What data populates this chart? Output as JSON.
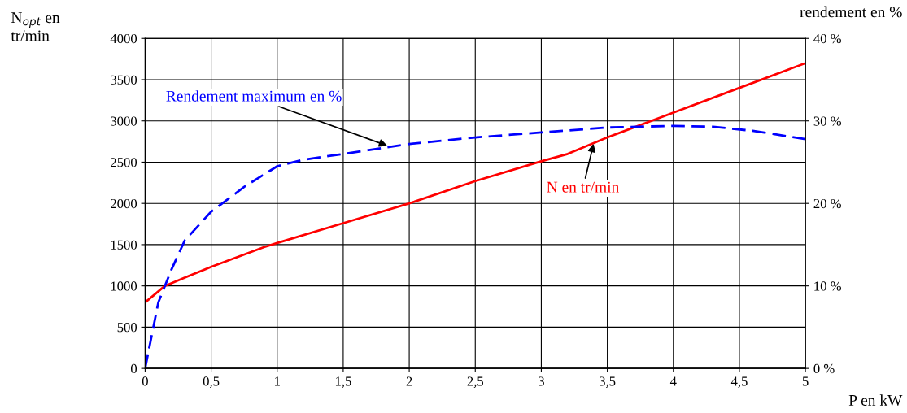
{
  "chart_data": {
    "type": "line",
    "xlabel": "P en kW",
    "ylabel": "N$_{opt}$ en\ntr/min",
    "y2label": "rendement en %",
    "xlim": [
      0,
      5
    ],
    "xticks": [
      0,
      {
        "value": 0.5,
        "label": "0,5"
      },
      1,
      {
        "value": 1.5,
        "label": "1,5"
      },
      2,
      {
        "value": 2.5,
        "label": "2,5"
      },
      3,
      {
        "value": 3.5,
        "label": "3,5"
      },
      4,
      {
        "value": 4.5,
        "label": "4,5"
      },
      5
    ],
    "ylim": [
      0,
      4000
    ],
    "yticks": [
      0,
      500,
      1000,
      1500,
      2000,
      2500,
      3000,
      3500,
      4000
    ],
    "y2lim": [
      0,
      40
    ],
    "y2ticks": [
      {
        "value": 0,
        "label": "0 %"
      },
      {
        "value": 10,
        "label": "10 %"
      },
      {
        "value": 20,
        "label": "20 %"
      },
      {
        "value": 30,
        "label": "30 %"
      },
      {
        "value": 40,
        "label": "40 %"
      }
    ],
    "grid": true,
    "legend": false,
    "series": [
      {
        "color": "#ff0000",
        "line_style": "solid",
        "x": [
          0,
          0.15,
          0.3,
          0.5,
          0.9,
          1,
          1.5,
          2,
          2.5,
          3,
          3.2,
          3.5,
          4,
          4.5,
          5
        ],
        "values": [
          800,
          1000,
          1100,
          1230,
          1470,
          1520,
          1760,
          2000,
          2270,
          2510,
          2600,
          2800,
          3100,
          3400,
          3700
        ]
      },
      {
        "color": "#0000ff",
        "line_style": "dashed",
        "axis": "y2",
        "x": [
          0,
          0.1,
          0.2,
          0.3,
          0.5,
          0.75,
          1,
          1.2,
          1.5,
          2,
          2.5,
          3,
          3.5,
          4,
          4.3,
          4.6,
          5
        ],
        "values": [
          0,
          8,
          12,
          15.5,
          19,
          22,
          24.5,
          25.3,
          26,
          27.2,
          28,
          28.6,
          29.2,
          29.4,
          29.3,
          28.8,
          27.8
        ]
      }
    ],
    "annotations": [
      {
        "text": "N en tr/min",
        "x": 3.4,
        "y": 2750
      },
      {
        "text": "Rendement maximum en %",
        "x": 1.85,
        "y": 2690
      }
    ]
  }
}
